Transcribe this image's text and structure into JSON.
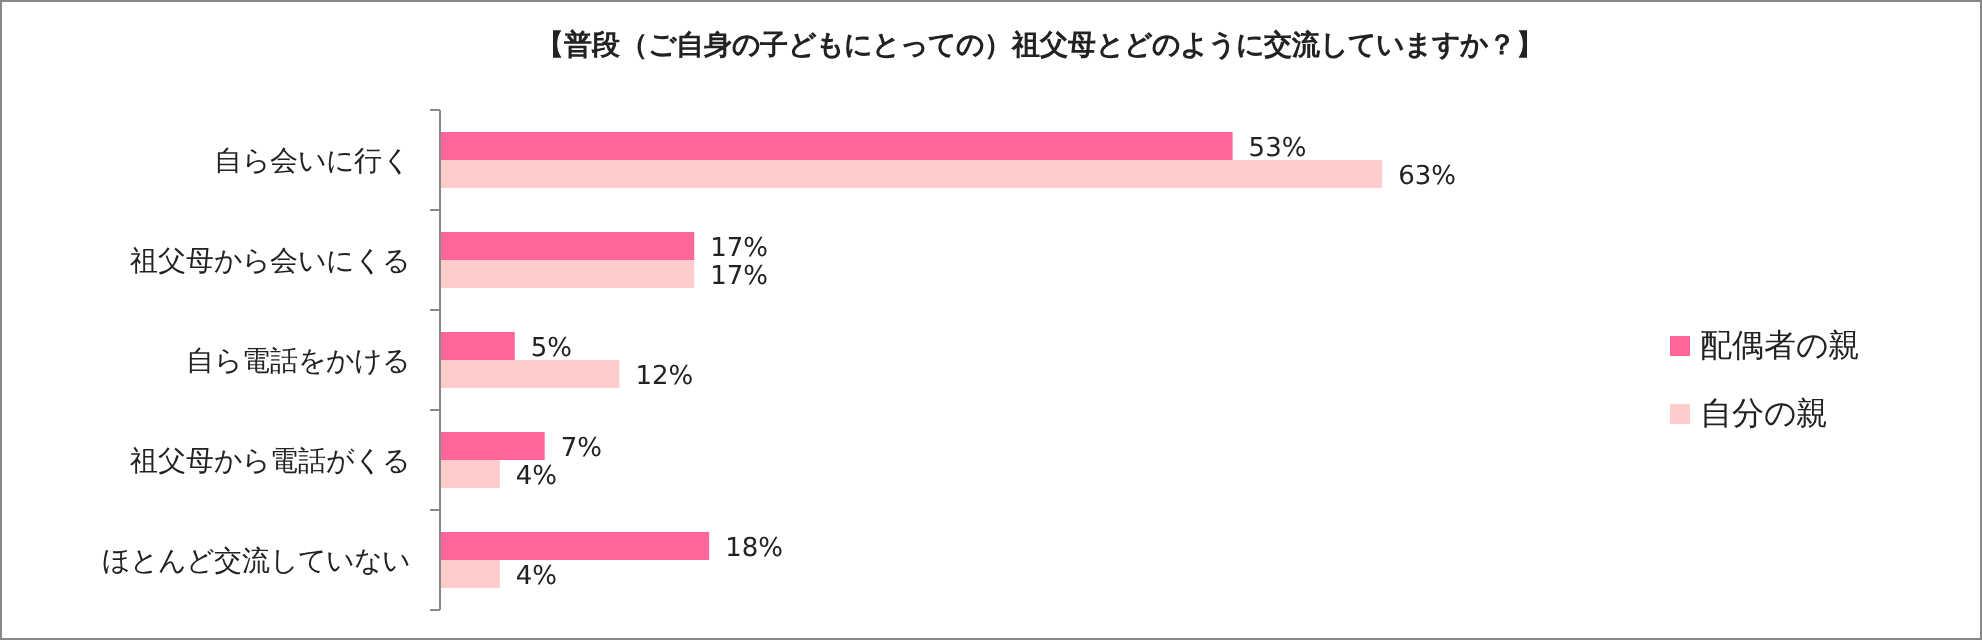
{
  "chart_data": {
    "type": "bar",
    "orientation": "horizontal",
    "title": "【普段（ご自身の子どもにとっての）祖父母とどのように交流していますか？】",
    "categories": [
      "自ら会いに行く",
      "祖父母から会いにくる",
      "自ら電話をかける",
      "祖父母から電話がくる",
      "ほとんど交流していない"
    ],
    "series": [
      {
        "name": "配偶者の親",
        "color": "#ff6699",
        "values": [
          53,
          17,
          5,
          7,
          18
        ],
        "value_labels": [
          "53%",
          "17%",
          "5%",
          "7%",
          "18%"
        ]
      },
      {
        "name": "自分の親",
        "color": "#ffcccc",
        "values": [
          63,
          17,
          12,
          4,
          4
        ],
        "value_labels": [
          "63%",
          "17%",
          "12%",
          "4%",
          "4%"
        ]
      }
    ],
    "legend": "right"
  }
}
